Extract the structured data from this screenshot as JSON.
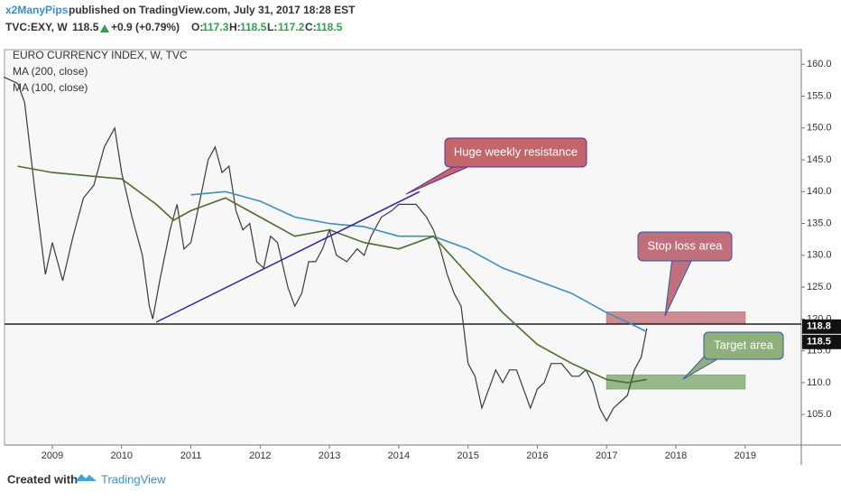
{
  "header": {
    "author": "x2ManyPips",
    "published": "published on TradingView.com, July 31, 2017 18:28 EST",
    "symbol": "TVC:EXY, W",
    "price": "118.5",
    "change": "+0.9 (+0.79%)",
    "ohlc": [
      "O:",
      "117.3",
      "H:",
      "118.5",
      "L:",
      "117.2",
      "C:",
      "118.5"
    ]
  },
  "footer": {
    "created": "Created with",
    "brand": "TradingView"
  },
  "chart_data": {
    "type": "line",
    "xlim": [
      2008.31,
      2019.81
    ],
    "xticks": [
      2009,
      2010,
      2011,
      2012,
      2013,
      2014,
      2015,
      2016,
      2017,
      2018,
      2019
    ],
    "ylim": [
      100.2,
      162.3
    ],
    "yticks": [
      {
        "value": 105,
        "label": "105.0"
      },
      {
        "value": 110,
        "label": "110.0"
      },
      {
        "value": 115,
        "label": "115.0"
      },
      {
        "value": 120,
        "label": "120.0"
      },
      {
        "value": 125,
        "label": "125.0"
      },
      {
        "value": 130,
        "label": "130.0"
      },
      {
        "value": 135,
        "label": "135.0"
      },
      {
        "value": 140,
        "label": "140.0"
      },
      {
        "value": 145,
        "label": "145.0"
      },
      {
        "value": 150,
        "label": "150.0"
      },
      {
        "value": 155,
        "label": "155.0"
      },
      {
        "value": 160,
        "label": "160.0"
      }
    ],
    "series": [
      {
        "name": "EURO CURRENCY INDEX, W, TVC",
        "color": "#3a3a3a",
        "x": [
          2008.3,
          2008.5,
          2008.6,
          2008.75,
          2008.9,
          2009.0,
          2009.15,
          2009.3,
          2009.45,
          2009.6,
          2009.75,
          2009.9,
          2010.0,
          2010.15,
          2010.3,
          2010.4,
          2010.45,
          2010.55,
          2010.7,
          2010.8,
          2010.9,
          2011.0,
          2011.1,
          2011.25,
          2011.35,
          2011.45,
          2011.55,
          2011.65,
          2011.75,
          2011.85,
          2011.95,
          2012.05,
          2012.15,
          2012.25,
          2012.4,
          2012.5,
          2012.6,
          2012.7,
          2012.8,
          2012.9,
          2013.0,
          2013.1,
          2013.25,
          2013.4,
          2013.5,
          2013.6,
          2013.75,
          2013.9,
          2014.0,
          2014.15,
          2014.25,
          2014.4,
          2014.5,
          2014.6,
          2014.7,
          2014.8,
          2014.9,
          2015.0,
          2015.1,
          2015.2,
          2015.3,
          2015.4,
          2015.5,
          2015.6,
          2015.7,
          2015.8,
          2015.9,
          2016.0,
          2016.1,
          2016.2,
          2016.35,
          2016.5,
          2016.6,
          2016.7,
          2016.8,
          2016.9,
          2017.0,
          2017.1,
          2017.2,
          2017.3,
          2017.4,
          2017.5,
          2017.58
        ],
        "values": [
          158,
          157,
          154,
          140,
          127,
          132,
          126,
          133,
          139,
          141,
          147,
          150,
          143,
          136,
          130,
          122,
          120,
          126,
          134,
          138,
          131,
          132,
          137,
          145,
          147,
          143,
          144,
          137,
          134,
          135,
          129,
          128,
          133,
          132,
          125,
          122,
          124,
          129,
          129,
          131,
          134,
          130,
          129,
          131,
          130,
          133,
          136,
          137,
          138,
          138,
          138,
          136,
          134,
          131,
          127,
          124,
          122,
          113,
          111,
          106,
          109,
          112,
          110,
          112,
          112,
          109,
          106,
          109,
          110,
          113,
          113,
          111,
          111,
          112,
          110,
          106,
          104,
          106,
          107,
          108,
          112,
          114,
          118.5
        ]
      },
      {
        "name": "MA (200, close)",
        "color": "#3d8fc0",
        "x": [
          2011.0,
          2011.5,
          2012.0,
          2012.5,
          2013.0,
          2013.5,
          2014.0,
          2014.5,
          2015.0,
          2015.5,
          2016.0,
          2016.5,
          2017.0,
          2017.3,
          2017.58
        ],
        "values": [
          139.5,
          140,
          138.5,
          136,
          135,
          134.5,
          133,
          133,
          131,
          128,
          126,
          124,
          121,
          119.5,
          118
        ]
      },
      {
        "name": "MA (100, close)",
        "color": "#4b6e2e",
        "x": [
          2008.5,
          2009.0,
          2009.5,
          2010.0,
          2010.5,
          2010.75,
          2011.0,
          2011.5,
          2012.0,
          2012.5,
          2013.0,
          2013.5,
          2014.0,
          2014.5,
          2015.0,
          2015.5,
          2016.0,
          2016.5,
          2017.0,
          2017.3,
          2017.58
        ],
        "values": [
          144,
          143,
          142.5,
          142,
          138,
          135.5,
          137,
          139,
          136,
          133,
          134,
          132,
          131,
          133,
          127,
          121,
          116,
          113,
          110.5,
          110,
          110.5
        ]
      }
    ],
    "last_price_labels": [
      118.8,
      118.5
    ],
    "hline": 119.2,
    "trendline": {
      "x": [
        2010.5,
        2014.3
      ],
      "y": [
        119.5,
        140
      ],
      "color": "#3a1f9e"
    },
    "zones": [
      {
        "label": "Stop loss area",
        "x": [
          2017,
          2019
        ],
        "y": [
          119.3,
          121.1
        ],
        "color": "#c47a80"
      },
      {
        "label": "Target area",
        "x": [
          2017,
          2019
        ],
        "y": [
          109,
          111.2
        ],
        "color": "#86ad77"
      }
    ],
    "annotations": [
      {
        "text": "Huge weekly resistance",
        "color": "#c2666c"
      }
    ]
  }
}
